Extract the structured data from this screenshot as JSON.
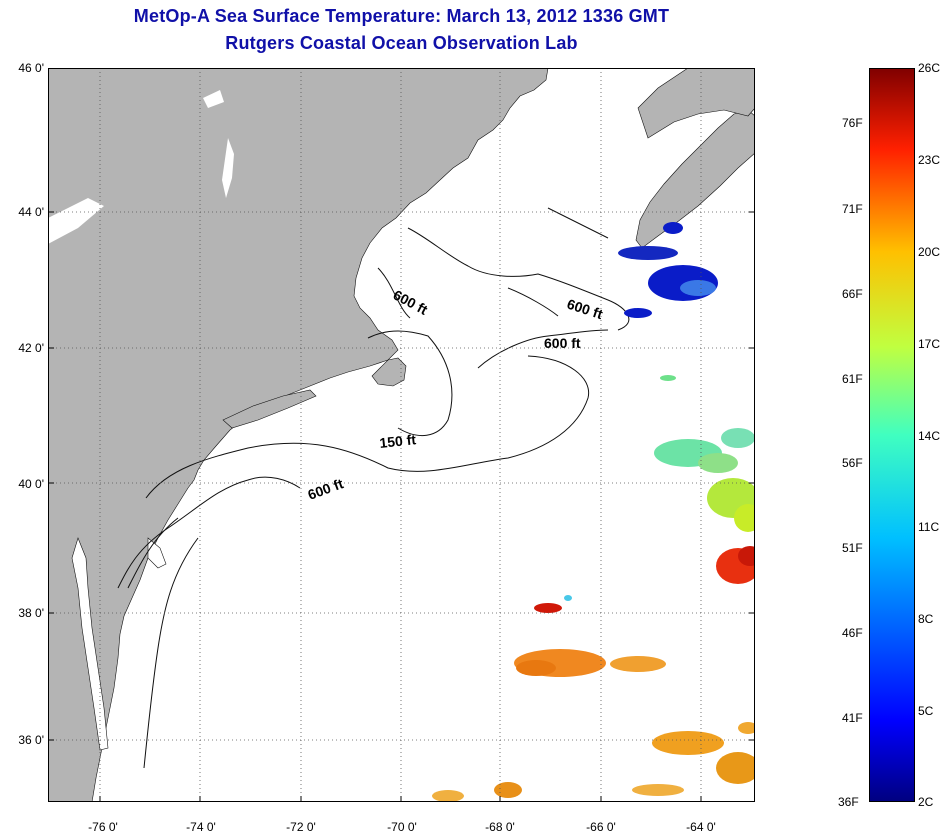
{
  "title": "MetOp-A Sea Surface Temperature:  March 13, 2012 1336 GMT",
  "subtitle": "Rutgers Coastal Ocean Observation Lab",
  "axes": {
    "lat_ticks": [
      "46 0'",
      "44 0'",
      "42 0'",
      "40 0'",
      "38 0'",
      "36 0'"
    ],
    "lon_ticks": [
      "-76 0'",
      "-74 0'",
      "-72 0'",
      "-70 0'",
      "-68 0'",
      "-66 0'",
      "-64 0'"
    ],
    "lat_range": [
      35,
      46
    ],
    "lon_range": [
      -77,
      -63
    ]
  },
  "contours": {
    "labels": [
      "600 ft",
      "600 ft",
      "600 ft",
      "150 ft",
      "600 ft"
    ]
  },
  "colorbar": {
    "celsius": [
      "26C",
      "23C",
      "20C",
      "17C",
      "14C",
      "11C",
      "8C",
      "5C",
      "2C"
    ],
    "fahrenheit": [
      "76F",
      "71F",
      "66F",
      "61F",
      "56F",
      "51F",
      "46F",
      "41F",
      "36F"
    ],
    "min_c": 2,
    "max_c": 26
  },
  "colors": {
    "title": "#1010a8",
    "land": "#b4b4b4",
    "ocean": "#ffffff",
    "grid": "#555555"
  }
}
